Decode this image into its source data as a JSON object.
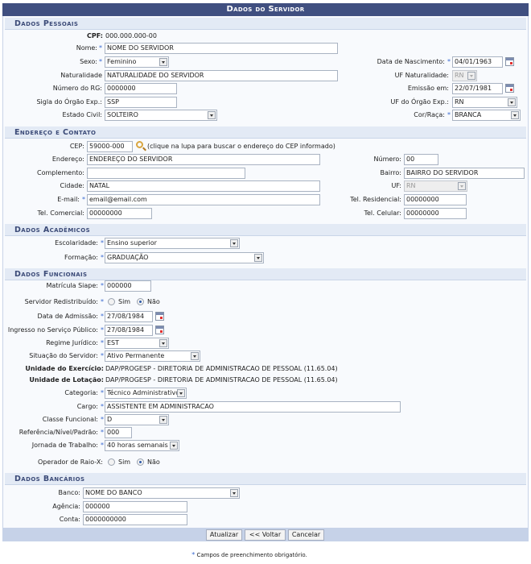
{
  "title": "Dados do Servidor",
  "colors": {
    "header": "#404f80",
    "section": "#e3eaf5",
    "required_star": "#3a6ad0",
    "button_bar": "#c6d2e8"
  },
  "required_marker": "*",
  "pessoais": {
    "title": "Dados Pessoais",
    "cpf": {
      "label": "CPF:",
      "value": "000.000.000-00"
    },
    "nome": {
      "label": "Nome:",
      "value": "NOME DO SERVIDOR"
    },
    "sexo": {
      "label": "Sexo:",
      "value": "Feminino"
    },
    "nascimento": {
      "label": "Data de Nascimento:",
      "value": "04/01/1963"
    },
    "naturalidade": {
      "label": "Naturalidade",
      "value": "NATURALIDADE DO SERVIDOR"
    },
    "uf_naturalidade": {
      "label": "UF Naturalidade:",
      "value": "RN"
    },
    "rg": {
      "label": "Número do RG:",
      "value": "0000000"
    },
    "emissao": {
      "label": "Emissão em:",
      "value": "22/07/1981"
    },
    "sigla_orgao": {
      "label": "Sigla do Órgão Exp.:",
      "value": "SSP"
    },
    "uf_orgao": {
      "label": "UF do Órgão Exp.:",
      "value": "RN"
    },
    "estado_civil": {
      "label": "Estado Civil:",
      "value": "SOLTEIRO"
    },
    "cor_raca": {
      "label": "Cor/Raça:",
      "value": "BRANCA"
    }
  },
  "endereco": {
    "title": "Endereço e Contato",
    "cep": {
      "label": "CEP:",
      "value": "59000-000",
      "hint": "(clique na lupa para buscar o endereço do CEP informado)"
    },
    "endereco": {
      "label": "Endereço:",
      "value": "ENDEREÇO DO SERVIDOR"
    },
    "numero": {
      "label": "Número:",
      "value": "00"
    },
    "complemento": {
      "label": "Complemento:",
      "value": ""
    },
    "bairro": {
      "label": "Bairro:",
      "value": "BAIRRO DO SERVIDOR"
    },
    "cidade": {
      "label": "Cidade:",
      "value": "NATAL"
    },
    "uf": {
      "label": "UF:",
      "value": "RN"
    },
    "email": {
      "label": "E-mail:",
      "value": "email@email.com"
    },
    "tel_residencial": {
      "label": "Tel. Residencial:",
      "value": "00000000"
    },
    "tel_comercial": {
      "label": "Tel. Comercial:",
      "value": "00000000"
    },
    "tel_celular": {
      "label": "Tel. Celular:",
      "value": "00000000"
    }
  },
  "academicos": {
    "title": "Dados Acadêmicos",
    "escolaridade": {
      "label": "Escolaridade:",
      "value": "Ensino superior"
    },
    "formacao": {
      "label": "Formação:",
      "value": "GRADUAÇÃO"
    }
  },
  "funcionais": {
    "title": "Dados Funcionais",
    "matricula": {
      "label": "Matrícula Siape:",
      "value": "000000"
    },
    "redistribuido": {
      "label": "Servidor Redistribuído:",
      "options": [
        "Sim",
        "Não"
      ],
      "selected": "Não"
    },
    "admissao": {
      "label": "Data de Admissão:",
      "value": "27/08/1984"
    },
    "ingresso": {
      "label": "Ingresso no Serviço Público:",
      "value": "27/08/1984"
    },
    "regime": {
      "label": "Regime Jurídico:",
      "value": "EST"
    },
    "situacao": {
      "label": "Situação do Servidor:",
      "value": "Ativo Permanente"
    },
    "exercicio": {
      "label": "Unidade do Exercício:",
      "value": "DAP/PROGESP - DIRETORIA DE ADMINISTRACAO DE PESSOAL (11.65.04)"
    },
    "lotacao": {
      "label": "Unidade de Lotação:",
      "value": "DAP/PROGESP - DIRETORIA DE ADMINISTRACAO DE PESSOAL (11.65.04)"
    },
    "categoria": {
      "label": "Categoria:",
      "value": "Técnico Administrativo"
    },
    "cargo": {
      "label": "Cargo:",
      "value": "ASSISTENTE EM ADMINISTRACAO"
    },
    "classe": {
      "label": "Classe Funcional:",
      "value": "D"
    },
    "referencia": {
      "label": "Referência/Nível/Padrão:",
      "value": "000"
    },
    "jornada": {
      "label": "Jornada de Trabalho:",
      "value": "40 horas semanais"
    },
    "raio_x": {
      "label": "Operador de Raio-X:",
      "options": [
        "Sim",
        "Não"
      ],
      "selected": "Não"
    }
  },
  "bancarios": {
    "title": "Dados Bancários",
    "banco": {
      "label": "Banco:",
      "value": "NOME DO BANCO"
    },
    "agencia": {
      "label": "Agência:",
      "value": "000000"
    },
    "conta": {
      "label": "Conta:",
      "value": "0000000000"
    }
  },
  "buttons": {
    "atualizar": "Atualizar",
    "voltar": "<< Voltar",
    "cancelar": "Cancelar"
  },
  "footnote": "Campos de preenchimento obrigatório."
}
